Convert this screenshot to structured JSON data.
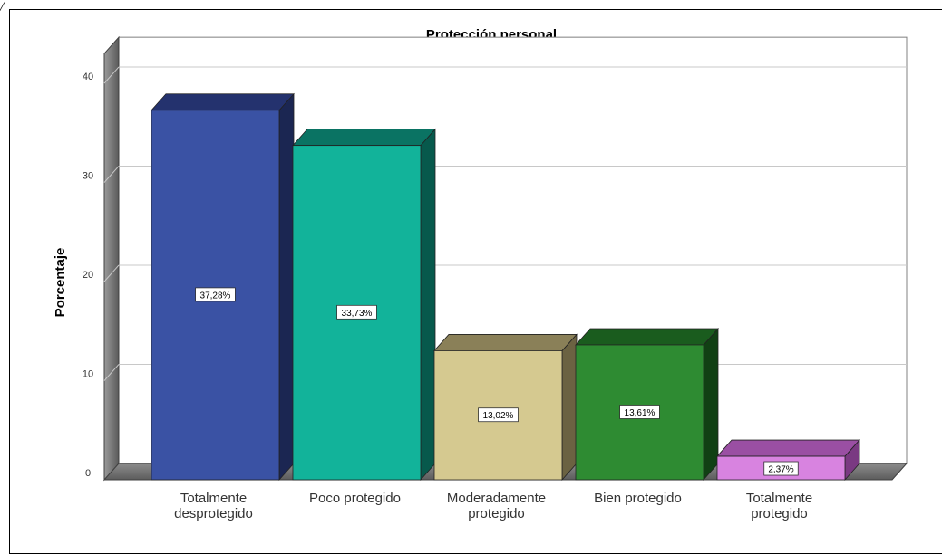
{
  "corner_mark": "/",
  "chart_data": {
    "type": "bar",
    "title": "Protección personal",
    "xlabel": "",
    "ylabel": "Porcentaje",
    "ylim": [
      0,
      43
    ],
    "yticks": [
      0,
      10,
      20,
      30,
      40
    ],
    "grid": true,
    "legend": "none",
    "categories": [
      [
        "Totalmente",
        "desprotegido"
      ],
      [
        "Poco protegido"
      ],
      [
        "Moderadamente",
        "protegido"
      ],
      [
        "Bien protegido"
      ],
      [
        "Totalmente",
        "protegido"
      ]
    ],
    "values": [
      37.28,
      33.73,
      13.02,
      13.61,
      2.37
    ],
    "data_labels": [
      "37,28%",
      "33,73%",
      "13,02%",
      "13,61%",
      "2,37%"
    ],
    "colors": [
      {
        "front": "#3a52a4",
        "top": "#24326e",
        "side": "#1b2652"
      },
      {
        "front": "#12b39a",
        "top": "#0a7363",
        "side": "#07594c"
      },
      {
        "front": "#d5c990",
        "top": "#8a8058",
        "side": "#6b6242"
      },
      {
        "front": "#2e8b32",
        "top": "#1a5c1e",
        "side": "#114014"
      },
      {
        "front": "#d883e0",
        "top": "#9a4fa3",
        "side": "#7a3a82"
      }
    ]
  }
}
